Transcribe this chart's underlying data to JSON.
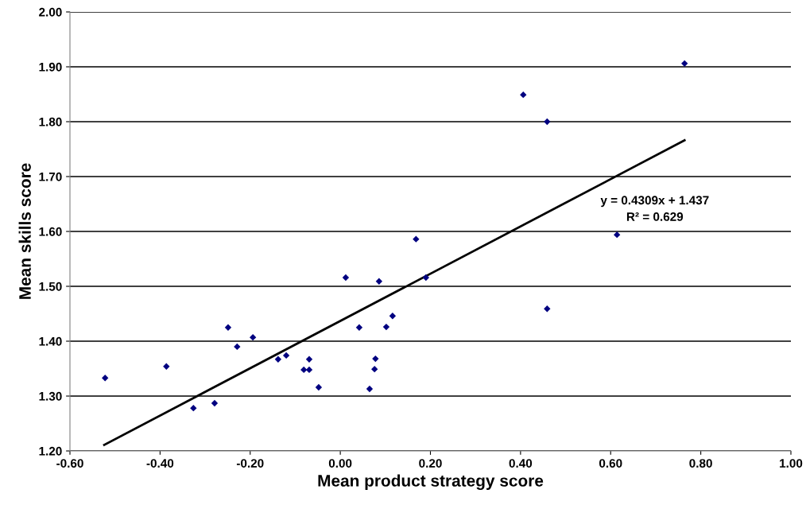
{
  "chart_data": {
    "type": "scatter",
    "xlabel": "Mean product strategy score",
    "ylabel": "Mean skills score",
    "xlim": [
      -0.6,
      1.0
    ],
    "ylim": [
      1.2,
      2.0
    ],
    "xticks": [
      {
        "value": -0.6,
        "label": "-0.60"
      },
      {
        "value": -0.4,
        "label": "-0.40"
      },
      {
        "value": -0.2,
        "label": "-0.20"
      },
      {
        "value": 0.0,
        "label": "0.00"
      },
      {
        "value": 0.2,
        "label": "0.20"
      },
      {
        "value": 0.4,
        "label": "0.40"
      },
      {
        "value": 0.6,
        "label": "0.60"
      },
      {
        "value": 0.8,
        "label": "0.80"
      },
      {
        "value": 1.0,
        "label": "1.00"
      }
    ],
    "yticks": [
      {
        "value": 1.2,
        "label": "1.20"
      },
      {
        "value": 1.3,
        "label": "1.30"
      },
      {
        "value": 1.4,
        "label": "1.40"
      },
      {
        "value": 1.5,
        "label": "1.50"
      },
      {
        "value": 1.6,
        "label": "1.60"
      },
      {
        "value": 1.7,
        "label": "1.70"
      },
      {
        "value": 1.8,
        "label": "1.80"
      },
      {
        "value": 1.9,
        "label": "1.90"
      },
      {
        "value": 2.0,
        "label": "2.00"
      }
    ],
    "grid": "y",
    "series": [
      {
        "marker": "diamond",
        "color": "#000080",
        "x": [
          -0.522,
          -0.386,
          -0.326,
          -0.279,
          -0.249,
          -0.229,
          -0.194,
          -0.138,
          -0.12,
          -0.081,
          -0.069,
          -0.069,
          -0.048,
          0.012,
          0.086,
          0.168,
          0.19,
          0.042,
          0.102,
          0.116,
          0.078,
          0.076,
          0.065,
          0.764,
          0.406,
          0.459,
          0.614,
          0.459
        ],
        "values": [
          1.333,
          1.354,
          1.278,
          1.287,
          1.425,
          1.39,
          1.407,
          1.367,
          1.374,
          1.348,
          1.367,
          1.348,
          1.316,
          1.516,
          1.509,
          1.586,
          1.516,
          1.425,
          1.426,
          1.446,
          1.368,
          1.349,
          1.313,
          1.906,
          1.849,
          1.8,
          1.594,
          1.459
        ]
      },
      {
        "type": "line",
        "marker": "none",
        "color": "#000000",
        "x": [
          -0.524,
          0.764
        ],
        "values": [
          1.211,
          1.766
        ]
      }
    ],
    "annotations": [
      "y = 0.4309x + 1.437",
      "R² = 0.629"
    ]
  }
}
